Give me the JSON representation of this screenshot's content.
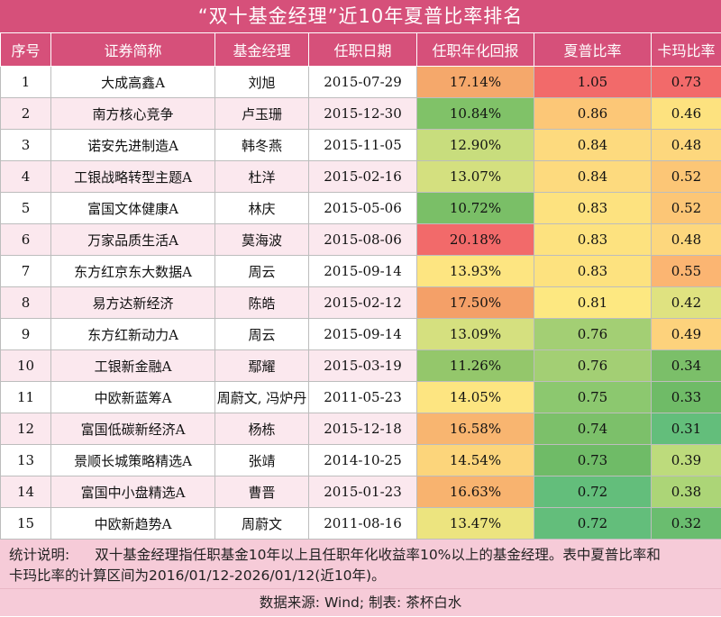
{
  "title": "“双十基金经理”近10年夏普比率排名",
  "columns": [
    "序号",
    "证券简称",
    "基金经理",
    "任职日期",
    "任职年化回报",
    "夏普比率",
    "卡玛比率"
  ],
  "rows": [
    {
      "no": "1",
      "name": "大成高鑫A",
      "manager": "刘旭",
      "date": "2015-07-29",
      "ret": "17.14%",
      "sharpe": "1.05",
      "calmar": "0.73",
      "ret_color": "#f5a86b",
      "sharpe_color": "#f26a6a",
      "calmar_color": "#f26a6a"
    },
    {
      "no": "2",
      "name": "南方核心竞争",
      "manager": "卢玉珊",
      "date": "2015-12-30",
      "ret": "10.84%",
      "sharpe": "0.86",
      "calmar": "0.46",
      "ret_color": "#80c268",
      "sharpe_color": "#fcc777",
      "calmar_color": "#fde27f"
    },
    {
      "no": "3",
      "name": "诺安先进制造A",
      "manager": "韩冬燕",
      "date": "2015-11-05",
      "ret": "12.90%",
      "sharpe": "0.84",
      "calmar": "0.48",
      "ret_color": "#c8dd7d",
      "sharpe_color": "#fdda7e",
      "calmar_color": "#fdd77d"
    },
    {
      "no": "4",
      "name": "工银战略转型主题A",
      "manager": "杜洋",
      "date": "2015-02-16",
      "ret": "13.07%",
      "sharpe": "0.84",
      "calmar": "0.52",
      "ret_color": "#d4e07f",
      "sharpe_color": "#fdda7e",
      "calmar_color": "#fcc676"
    },
    {
      "no": "5",
      "name": "富国文体健康A",
      "manager": "林庆",
      "date": "2015-05-06",
      "ret": "10.72%",
      "sharpe": "0.83",
      "calmar": "0.52",
      "ret_color": "#7abf67",
      "sharpe_color": "#fde27f",
      "calmar_color": "#fcc676"
    },
    {
      "no": "6",
      "name": "万家品质生活A",
      "manager": "莫海波",
      "date": "2015-08-06",
      "ret": "20.18%",
      "sharpe": "0.83",
      "calmar": "0.48",
      "ret_color": "#f26a6a",
      "sharpe_color": "#fde27f",
      "calmar_color": "#fdd77d"
    },
    {
      "no": "7",
      "name": "东方红京东大数据A",
      "manager": "周云",
      "date": "2015-09-14",
      "ret": "13.93%",
      "sharpe": "0.83",
      "calmar": "0.55",
      "ret_color": "#fde581",
      "sharpe_color": "#fde27f",
      "calmar_color": "#fbb572"
    },
    {
      "no": "8",
      "name": "易方达新经济",
      "manager": "陈皓",
      "date": "2015-02-12",
      "ret": "17.50%",
      "sharpe": "0.81",
      "calmar": "0.42",
      "ret_color": "#f4a068",
      "sharpe_color": "#fde881",
      "calmar_color": "#dfe280"
    },
    {
      "no": "9",
      "name": "东方红新动力A",
      "manager": "周云",
      "date": "2015-09-14",
      "ret": "13.09%",
      "sharpe": "0.76",
      "calmar": "0.49",
      "ret_color": "#d5e07f",
      "sharpe_color": "#a3cf74",
      "calmar_color": "#fdd27c"
    },
    {
      "no": "10",
      "name": "工银新金融A",
      "manager": "鄢耀",
      "date": "2015-03-19",
      "ret": "11.26%",
      "sharpe": "0.76",
      "calmar": "0.34",
      "ret_color": "#94c76b",
      "sharpe_color": "#a3cf74",
      "calmar_color": "#7bbf69"
    },
    {
      "no": "11",
      "name": "中欧新蓝筹A",
      "manager": "周蔚文, 冯炉丹",
      "date": "2011-05-23",
      "ret": "14.05%",
      "sharpe": "0.75",
      "calmar": "0.33",
      "ret_color": "#fde581",
      "sharpe_color": "#8cc86f",
      "calmar_color": "#6fbb67"
    },
    {
      "no": "12",
      "name": "富国低碳新经济A",
      "manager": "杨栋",
      "date": "2015-12-18",
      "ret": "16.58%",
      "sharpe": "0.74",
      "calmar": "0.31",
      "ret_color": "#f8b570",
      "sharpe_color": "#7cc06a",
      "calmar_color": "#63be7b"
    },
    {
      "no": "13",
      "name": "景顺长城策略精选A",
      "manager": "张靖",
      "date": "2014-10-25",
      "ret": "14.54%",
      "sharpe": "0.73",
      "calmar": "0.39",
      "ret_color": "#fcd57b",
      "sharpe_color": "#6fbb67",
      "calmar_color": "#bddb7c"
    },
    {
      "no": "14",
      "name": "富国中小盘精选A",
      "manager": "曹晋",
      "date": "2015-01-23",
      "ret": "16.63%",
      "sharpe": "0.72",
      "calmar": "0.38",
      "ret_color": "#f8b36f",
      "sharpe_color": "#63be7b",
      "calmar_color": "#acd577"
    },
    {
      "no": "15",
      "name": "中欧新趋势A",
      "manager": "周蔚文",
      "date": "2011-08-16",
      "ret": "13.47%",
      "sharpe": "0.72",
      "calmar": "0.32",
      "ret_color": "#ece47f",
      "sharpe_color": "#63be7b",
      "calmar_color": "#6abd6f"
    }
  ],
  "note": {
    "label": "统计说明:",
    "text_line1": "双十基金经理指任职基金10年以上且任职年化收益率10%以上的基金经理。表中夏普比率和",
    "text_line2": "卡玛比率的计算区间为2016/01/12-2026/01/12(近10年)。"
  },
  "source": "数据来源: Wind; 制表: 茶杯白水"
}
